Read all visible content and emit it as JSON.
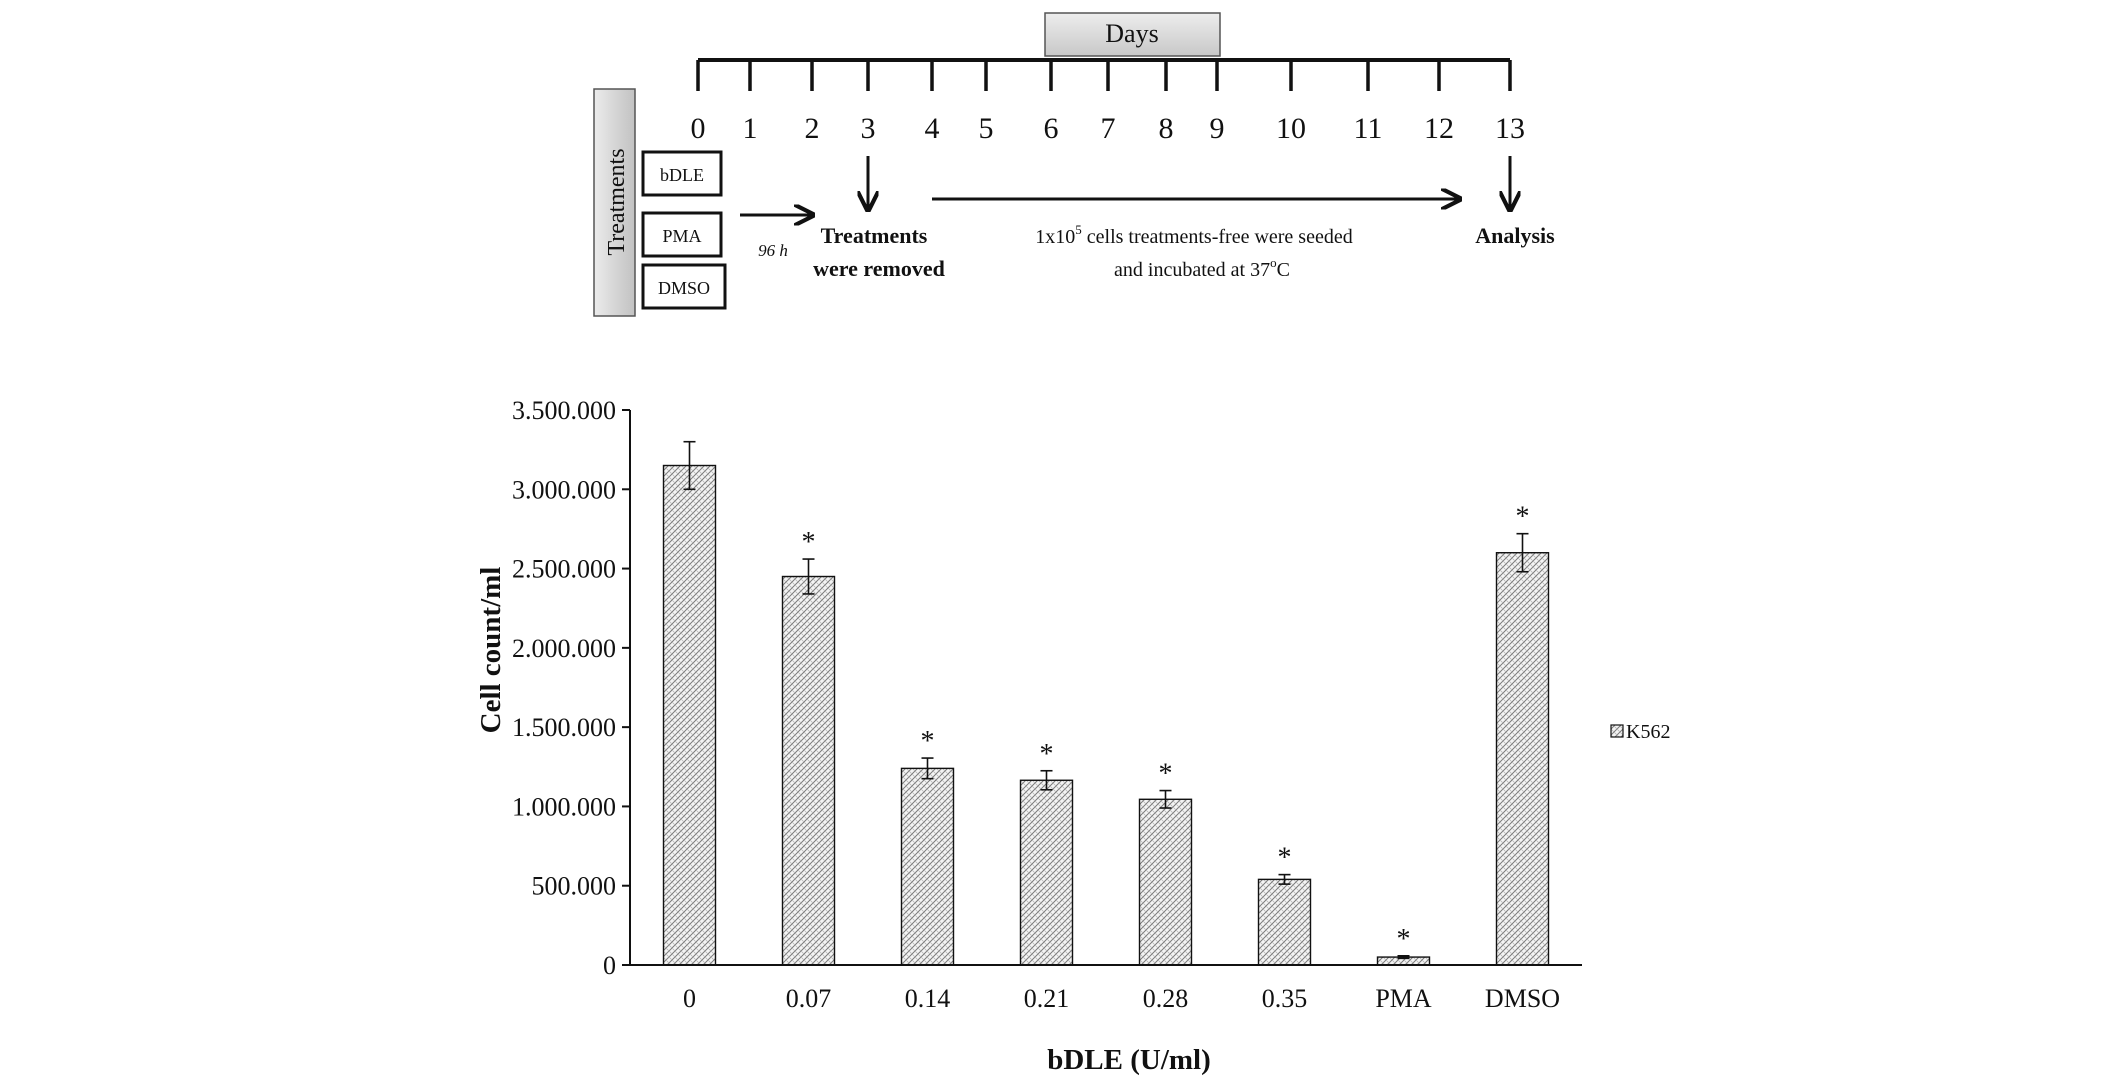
{
  "timeline": {
    "header": "Days",
    "days": [
      "0",
      "1",
      "2",
      "3",
      "4",
      "5",
      "6",
      "7",
      "8",
      "9",
      "10",
      "11",
      "12",
      "13"
    ],
    "treatments_label": "Treatments",
    "treatments": [
      "bDLE",
      "PMA",
      "DMSO"
    ],
    "duration_label": "96 h",
    "removed_label_1": "Treatments",
    "removed_label_2": "were removed",
    "seeding_label_1_prefix": "1x10",
    "seeding_label_1_sup": "5",
    "seeding_label_1_suffix": " cells treatments-free were seeded",
    "seeding_label_2_prefix": "and incubated at 37",
    "seeding_label_2_sup": "o",
    "seeding_label_2_suffix": "C",
    "analysis_label": "Analysis"
  },
  "chart_data": {
    "type": "bar",
    "categories": [
      "0",
      "0.07",
      "0.14",
      "0.21",
      "0.28",
      "0.35",
      "PMA",
      "DMSO"
    ],
    "series": [
      {
        "name": "K562",
        "values": [
          3150000,
          2450000,
          1240000,
          1165000,
          1045000,
          540000,
          50000,
          2600000
        ],
        "errors": [
          150000,
          110000,
          65000,
          60000,
          55000,
          30000,
          8000,
          120000
        ],
        "significance": [
          "",
          "*",
          "*",
          "*",
          "*",
          "*",
          "*",
          "*"
        ]
      }
    ],
    "xlabel": "bDLE (U/ml)",
    "ylabel": "Cell count/ml",
    "ylim": [
      0,
      3500000
    ],
    "yticks": [
      "0",
      "500.000",
      "1.000.000",
      "1.500.000",
      "2.000.000",
      "2.500.000",
      "3.000.000",
      "3.500.000"
    ],
    "legend_position": "right",
    "grid": false
  }
}
